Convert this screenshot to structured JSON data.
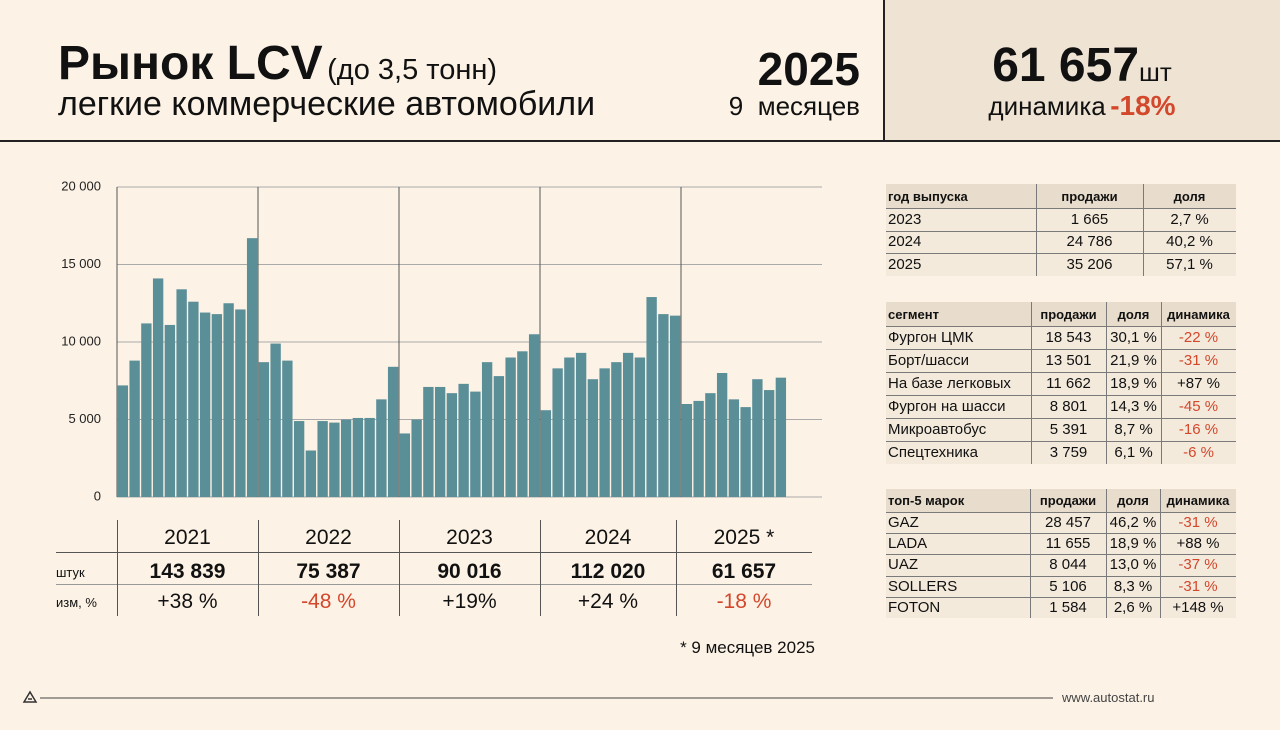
{
  "header": {
    "title": "Рынок LCV",
    "title_note": "(до 3,5 тонн)",
    "subtitle": "легкие коммерческие автомобили",
    "year": "2025",
    "period": "9  месяцев",
    "total": "61 657",
    "unit": "шт",
    "dynamics_label": "динамика",
    "dynamics": "-18%"
  },
  "chart_data": {
    "type": "bar",
    "categories": [
      null,
      null,
      null,
      null,
      null,
      null,
      null,
      null,
      null,
      null,
      null,
      null,
      null,
      null,
      null,
      null,
      null,
      null,
      null,
      null,
      null,
      null,
      null,
      null,
      null,
      null,
      null,
      null,
      null,
      null,
      null,
      null,
      null,
      null,
      null,
      null,
      null,
      null,
      null,
      null,
      null,
      null,
      null,
      null,
      null,
      null,
      null,
      null,
      null,
      null,
      null,
      null,
      null,
      null,
      null,
      null,
      null
    ],
    "values": [
      7200,
      8800,
      11200,
      14100,
      11100,
      13400,
      12600,
      11900,
      11800,
      12500,
      12100,
      16700,
      8700,
      9900,
      8800,
      4900,
      3000,
      4900,
      4800,
      5000,
      5100,
      5100,
      6300,
      8400,
      4100,
      5000,
      7100,
      7100,
      6700,
      7300,
      6800,
      8700,
      7800,
      9000,
      9400,
      10500,
      5600,
      8300,
      9000,
      9300,
      7600,
      8300,
      8700,
      9300,
      9000,
      12900,
      11800,
      11700,
      6000,
      6200,
      6700,
      8000,
      6300,
      5800,
      7600,
      6900,
      7700
    ],
    "color": "#5b8f98",
    "ylim": [
      0,
      20000
    ],
    "yticks": [
      0,
      {
        "value": 5000,
        "label": "5 000"
      },
      {
        "value": 10000,
        "label": "10 000"
      },
      {
        "value": 15000,
        "label": "15 000"
      },
      {
        "value": 20000,
        "label": "20 000"
      }
    ],
    "grid": true
  },
  "summary": {
    "columns": [
      "2021",
      "2022",
      "2023",
      "2024",
      "2025 *"
    ],
    "rows": [
      {
        "label": "штук",
        "cells": [
          "143 839",
          "75 387",
          "90 016",
          "112 020",
          "61 657"
        ]
      },
      {
        "label": "изм, %",
        "cells": [
          "+38 %",
          "-48 %",
          "+19%",
          "+24 %",
          "-18 %"
        ]
      }
    ],
    "note": "* 9 месяцев 2025"
  },
  "tables": [
    {
      "columns": [
        "год выпуска",
        "продажи",
        "доля"
      ],
      "rows": [
        [
          "2023",
          "1 665",
          "2,7 %"
        ],
        [
          "2024",
          "24 786",
          "40,2 %"
        ],
        [
          "2025",
          "35 206",
          "57,1 %"
        ]
      ]
    },
    {
      "columns": [
        "сегмент",
        "продажи",
        "доля",
        "динамика"
      ],
      "rows": [
        [
          "Фургон ЦМК",
          "18 543",
          "30,1 %",
          "-22 %"
        ],
        [
          "Борт/шасси",
          "13 501",
          "21,9 %",
          "-31 %"
        ],
        [
          "На базе легковых",
          "11 662",
          "18,9 %",
          "+87 %"
        ],
        [
          "Фургон на шасси",
          "8 801",
          "14,3 %",
          "-45 %"
        ],
        [
          "Микроавтобус",
          "5 391",
          "8,7 %",
          "-16 %"
        ],
        [
          "Спецтехника",
          "3 759",
          "6,1 %",
          "-6 %"
        ]
      ]
    },
    {
      "columns": [
        "топ-5 марок",
        "продажи",
        "доля",
        "динамика"
      ],
      "rows": [
        [
          "GAZ",
          "28 457",
          "46,2 %",
          "-31 %"
        ],
        [
          "LADA",
          "11 655",
          "18,9 %",
          "+88 %"
        ],
        [
          "UAZ",
          "8 044",
          "13,0 %",
          "-37 %"
        ],
        [
          "SOLLERS",
          "5 106",
          "8,3 %",
          "-31 %"
        ],
        [
          "FOTON",
          "1 584",
          "2,6 %",
          "+148 %"
        ]
      ]
    }
  ],
  "footer": {
    "site": "www.autostat.ru"
  }
}
